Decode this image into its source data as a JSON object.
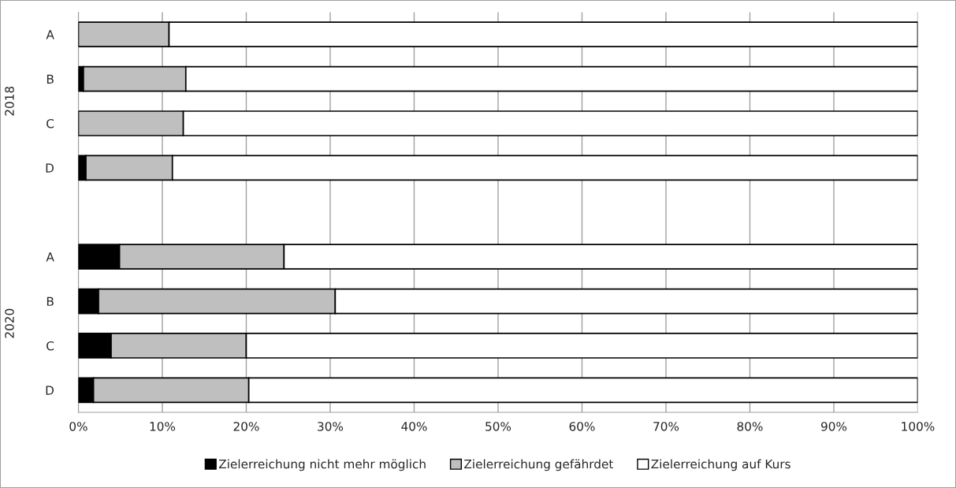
{
  "chart_data": {
    "type": "bar",
    "orientation": "horizontal",
    "stacked": true,
    "categories": [
      "A",
      "B",
      "C",
      "D",
      null,
      "A",
      "B",
      "C",
      "D"
    ],
    "series": [
      {
        "name": "Zielerreichung nicht mehr möglich",
        "color": "#000000",
        "values": [
          0,
          0.6,
          0,
          0.9,
          null,
          4.9,
          2.4,
          3.9,
          1.8
        ]
      },
      {
        "name": "Zielerreichung gefährdet",
        "color": "#bfbfbf",
        "values": [
          10.8,
          12.2,
          12.5,
          10.3,
          null,
          19.6,
          28.2,
          16.1,
          18.5
        ]
      },
      {
        "name": "Zielerreichung auf Kurs",
        "color": "#ffffff",
        "values": [
          89.2,
          87.2,
          87.5,
          88.8,
          null,
          75.5,
          69.4,
          80.0,
          79.7
        ]
      }
    ],
    "xlim": [
      0,
      100
    ],
    "xticks": [
      {
        "value": 0,
        "label": "0%"
      },
      {
        "value": 10,
        "label": "10%"
      },
      {
        "value": 20,
        "label": "20%"
      },
      {
        "value": 30,
        "label": "30%"
      },
      {
        "value": 40,
        "label": "40%"
      },
      {
        "value": 50,
        "label": "50%"
      },
      {
        "value": 60,
        "label": "60%"
      },
      {
        "value": 70,
        "label": "70%"
      },
      {
        "value": 80,
        "label": "80%"
      },
      {
        "value": 90,
        "label": "90%"
      },
      {
        "value": 100,
        "label": "100%"
      }
    ],
    "annotations": [
      "2018",
      "2020"
    ],
    "grid": "x",
    "legend": "bottom"
  }
}
